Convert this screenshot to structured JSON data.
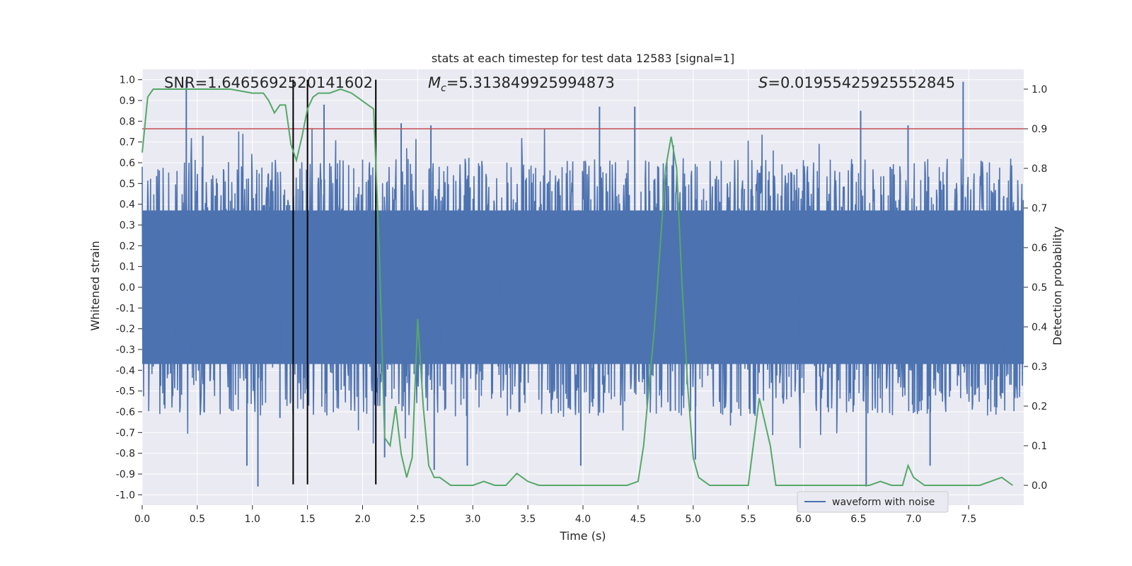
{
  "chart_data": {
    "type": "line",
    "title": "stats at each timestep for test data 12583 [signal=1]",
    "xlabel": "Time (s)",
    "ylabel": "Whitened strain",
    "ylabel_right": "Detection probability",
    "xlim": [
      0.0,
      8.0
    ],
    "ylim": [
      -1.05,
      1.05
    ],
    "ylim_right": [
      -0.05,
      1.05
    ],
    "x_ticks": [
      0.0,
      0.5,
      1.0,
      1.5,
      2.0,
      2.5,
      3.0,
      3.5,
      4.0,
      4.5,
      5.0,
      5.5,
      6.0,
      6.5,
      7.0,
      7.5
    ],
    "x_tick_labels": [
      "0.0",
      "0.5",
      "1.0",
      "1.5",
      "2.0",
      "2.5",
      "3.0",
      "3.5",
      "4.0",
      "4.5",
      "5.0",
      "5.5",
      "6.0",
      "6.5",
      "7.0",
      "7.5"
    ],
    "y_ticks": [
      1.0,
      0.9,
      0.8,
      0.7,
      0.6,
      0.5,
      0.4,
      0.3,
      0.2,
      0.1,
      0.0,
      -0.1,
      -0.2,
      -0.3,
      -0.4,
      -0.5,
      -0.6,
      -0.7,
      -0.8,
      -0.9,
      -1.0
    ],
    "y_tick_labels": [
      "1.0",
      "0.9",
      "0.8",
      "0.7",
      "0.6",
      "0.5",
      "0.4",
      "0.3",
      "0.2",
      "0.1",
      "0.0",
      "-0.1",
      "-0.2",
      "-0.3",
      "-0.4",
      "-0.5",
      "-0.6",
      "-0.7",
      "-0.8",
      "-0.9",
      "-1.0"
    ],
    "y2_ticks": [
      1.0,
      0.9,
      0.8,
      0.7,
      0.6,
      0.5,
      0.4,
      0.3,
      0.2,
      0.1,
      0.0
    ],
    "y2_tick_labels": [
      "1.0",
      "0.9",
      "0.8",
      "0.7",
      "0.6",
      "0.5",
      "0.4",
      "0.3",
      "0.2",
      "0.1",
      "0.0"
    ],
    "annotations": {
      "snr": "SNR=1.6465692520141602",
      "mc_symbol": "M",
      "mc_sub": "c",
      "mc_value": "=5.313849925994873",
      "s_symbol": "S",
      "s_value": "=0.01955425925552845"
    },
    "threshold": {
      "axis": "right",
      "value": 0.9,
      "color": "#c44e52"
    },
    "vertical_markers": [
      1.37,
      1.5,
      2.12
    ],
    "legend": {
      "label": "waveform with noise",
      "placement": "lower-right"
    },
    "series": [
      {
        "name": "waveform with noise",
        "axis": "left",
        "color": "#4c72b0",
        "description": "dense noisy strain, envelope approx ±0.4 with spikes",
        "band_upper": 0.37,
        "band_lower": -0.37,
        "spikes": [
          [
            0.4,
            1.0
          ],
          [
            0.55,
            0.73
          ],
          [
            1.05,
            -0.96
          ],
          [
            0.95,
            -0.86
          ],
          [
            1.65,
            0.88
          ],
          [
            2.35,
            0.79
          ],
          [
            2.62,
            0.78
          ],
          [
            2.65,
            -0.88
          ],
          [
            2.95,
            -0.86
          ],
          [
            4.15,
            0.87
          ],
          [
            3.98,
            -0.86
          ],
          [
            4.47,
            0.87
          ],
          [
            5.02,
            -0.83
          ],
          [
            6.52,
            0.85
          ],
          [
            6.57,
            -0.96
          ],
          [
            7.45,
            0.99
          ],
          [
            6.95,
            0.78
          ],
          [
            7.15,
            -0.86
          ],
          [
            1.25,
            -0.63
          ],
          [
            2.2,
            -0.82
          ]
        ]
      },
      {
        "name": "detection probability",
        "axis": "right",
        "color": "#55a868",
        "x": [
          0.0,
          0.05,
          0.1,
          0.2,
          0.4,
          0.6,
          0.8,
          1.0,
          1.1,
          1.15,
          1.2,
          1.25,
          1.3,
          1.35,
          1.4,
          1.45,
          1.5,
          1.55,
          1.6,
          1.65,
          1.7,
          1.8,
          1.9,
          2.0,
          2.05,
          2.1,
          2.15,
          2.2,
          2.25,
          2.3,
          2.35,
          2.4,
          2.45,
          2.5,
          2.55,
          2.6,
          2.65,
          2.7,
          2.75,
          2.8,
          2.85,
          2.9,
          3.0,
          3.1,
          3.2,
          3.3,
          3.4,
          3.5,
          3.6,
          3.7,
          3.8,
          3.9,
          4.0,
          4.2,
          4.4,
          4.5,
          4.55,
          4.6,
          4.65,
          4.7,
          4.75,
          4.8,
          4.85,
          4.9,
          4.95,
          5.0,
          5.05,
          5.1,
          5.15,
          5.2,
          5.3,
          5.4,
          5.5,
          5.6,
          5.7,
          5.75,
          5.8,
          5.85,
          5.9,
          6.0,
          6.2,
          6.5,
          6.6,
          6.7,
          6.8,
          6.9,
          6.95,
          7.0,
          7.1,
          7.2,
          7.4,
          7.6,
          7.7,
          7.8,
          7.9
        ],
        "y": [
          0.84,
          0.98,
          1.0,
          1.0,
          1.0,
          1.0,
          1.0,
          0.99,
          0.99,
          0.97,
          0.94,
          0.96,
          0.96,
          0.86,
          0.82,
          0.88,
          0.95,
          0.98,
          0.99,
          0.99,
          0.99,
          1.0,
          0.99,
          0.97,
          0.96,
          0.95,
          0.6,
          0.12,
          0.1,
          0.2,
          0.08,
          0.02,
          0.07,
          0.42,
          0.2,
          0.05,
          0.02,
          0.02,
          0.01,
          0.0,
          0.0,
          0.0,
          0.0,
          0.01,
          0.0,
          0.0,
          0.03,
          0.01,
          0.0,
          0.0,
          0.0,
          0.0,
          0.0,
          0.0,
          0.0,
          0.01,
          0.1,
          0.25,
          0.4,
          0.6,
          0.8,
          0.88,
          0.8,
          0.5,
          0.25,
          0.07,
          0.02,
          0.01,
          0.0,
          0.0,
          0.0,
          0.0,
          0.0,
          0.22,
          0.1,
          0.0,
          0.0,
          0.0,
          0.0,
          0.0,
          0.0,
          0.0,
          0.0,
          0.01,
          0.0,
          0.0,
          0.05,
          0.02,
          0.0,
          0.0,
          0.0,
          0.0,
          0.01,
          0.02,
          0.0
        ]
      }
    ]
  }
}
